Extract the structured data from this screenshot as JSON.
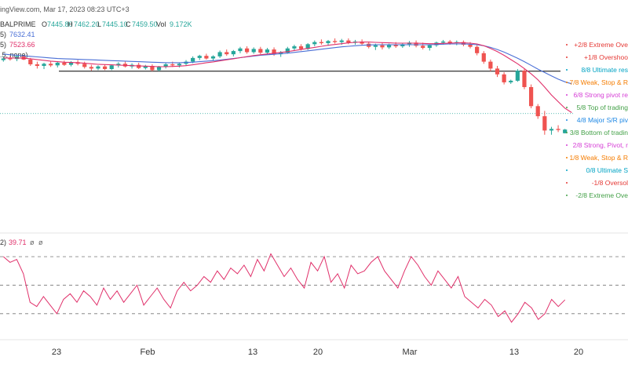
{
  "header": {
    "site_fragment": "ingView.com, Mar 17, 2023 08:23 UTC+3",
    "symbol_fragment": "BALPRIME",
    "o_label": "O",
    "o_value": "7445.80",
    "h_label": "H",
    "h_value": "7462.20",
    "l_label": "L",
    "l_value": "7445.10",
    "c_label": "C",
    "c_value": "7459.50",
    "vol_label": "Vol",
    "vol_value": "9.172K",
    "ma1_fragment": "5)",
    "ma1_value": "7632.41",
    "ma2_fragment": "5)",
    "ma2_value": "7523.66",
    "params_fragment": ".5, none)"
  },
  "rsi_header": {
    "fragment": "2)",
    "value": "39.71",
    "extra1": "ø",
    "extra2": "ø"
  },
  "colors": {
    "candle_up": "#26a69a",
    "candle_down": "#ef5350",
    "ma_blue": "#4a6fd6",
    "ma_pink": "#e0306a",
    "rsi_line": "#e0306a",
    "support_line": "#000000",
    "price_guide": "#26a69a"
  },
  "murrey_labels": [
    {
      "text": "+2/8 Extreme Ove",
      "color": "#e53935"
    },
    {
      "text": "+1/8 Overshoo",
      "color": "#e53935"
    },
    {
      "text": "8/8 Ultimate res",
      "color": "#00a3c4"
    },
    {
      "text": "7/8 Weak, Stop & R",
      "color": "#f57c00"
    },
    {
      "text": "6/8 Strong pivot re",
      "color": "#d63fd6"
    },
    {
      "text": "5/8 Top of trading",
      "color": "#43a047"
    },
    {
      "text": "4/8 Major S/R piv",
      "color": "#1e88e5"
    },
    {
      "text": "3/8 Bottom of tradin",
      "color": "#43a047"
    },
    {
      "text": "2/8 Strong, Pivot, r",
      "color": "#d63fd6"
    },
    {
      "text": "1/8 Weak, Stop & R",
      "color": "#f57c00"
    },
    {
      "text": "0/8 Ultimate S",
      "color": "#00a3c4"
    },
    {
      "text": "-1/8 Oversol",
      "color": "#e53935"
    },
    {
      "text": "-2/8 Extreme Ove",
      "color": "#43a047"
    }
  ],
  "chart_data": [
    {
      "type": "candlestick",
      "title": "BALPRIME",
      "x_ticks": [
        "23",
        "Feb",
        "13",
        "20",
        "Mar",
        "13",
        "20"
      ],
      "grid": false,
      "y_range": [
        7380,
        7860
      ],
      "ohlc": [
        [
          7722,
          7735,
          7716,
          7728
        ],
        [
          7728,
          7738,
          7720,
          7726
        ],
        [
          7726,
          7742,
          7718,
          7736
        ],
        [
          7736,
          7740,
          7722,
          7724
        ],
        [
          7724,
          7730,
          7700,
          7706
        ],
        [
          7706,
          7716,
          7690,
          7700
        ],
        [
          7700,
          7712,
          7688,
          7708
        ],
        [
          7708,
          7718,
          7696,
          7702
        ],
        [
          7702,
          7716,
          7694,
          7712
        ],
        [
          7712,
          7720,
          7700,
          7704
        ],
        [
          7704,
          7718,
          7698,
          7714
        ],
        [
          7714,
          7722,
          7702,
          7708
        ],
        [
          7708,
          7716,
          7690,
          7696
        ],
        [
          7696,
          7704,
          7682,
          7690
        ],
        [
          7690,
          7702,
          7684,
          7698
        ],
        [
          7698,
          7706,
          7684,
          7688
        ],
        [
          7688,
          7706,
          7684,
          7702
        ],
        [
          7702,
          7714,
          7694,
          7708
        ],
        [
          7708,
          7716,
          7694,
          7698
        ],
        [
          7698,
          7710,
          7690,
          7704
        ],
        [
          7704,
          7712,
          7688,
          7692
        ],
        [
          7692,
          7704,
          7686,
          7700
        ],
        [
          7700,
          7706,
          7680,
          7684
        ],
        [
          7684,
          7700,
          7680,
          7696
        ],
        [
          7696,
          7712,
          7690,
          7706
        ],
        [
          7706,
          7716,
          7696,
          7702
        ],
        [
          7702,
          7712,
          7694,
          7708
        ],
        [
          7708,
          7722,
          7700,
          7716
        ],
        [
          7716,
          7736,
          7710,
          7730
        ],
        [
          7730,
          7742,
          7722,
          7738
        ],
        [
          7738,
          7746,
          7724,
          7728
        ],
        [
          7728,
          7740,
          7720,
          7736
        ],
        [
          7736,
          7758,
          7730,
          7752
        ],
        [
          7752,
          7762,
          7738,
          7744
        ],
        [
          7744,
          7760,
          7736,
          7756
        ],
        [
          7756,
          7772,
          7748,
          7766
        ],
        [
          7766,
          7774,
          7746,
          7752
        ],
        [
          7752,
          7770,
          7746,
          7764
        ],
        [
          7764,
          7772,
          7744,
          7750
        ],
        [
          7750,
          7768,
          7742,
          7762
        ],
        [
          7762,
          7770,
          7738,
          7744
        ],
        [
          7744,
          7756,
          7734,
          7750
        ],
        [
          7750,
          7772,
          7746,
          7766
        ],
        [
          7766,
          7780,
          7756,
          7774
        ],
        [
          7774,
          7782,
          7758,
          7764
        ],
        [
          7764,
          7786,
          7760,
          7782
        ],
        [
          7782,
          7796,
          7774,
          7790
        ],
        [
          7790,
          7800,
          7780,
          7786
        ],
        [
          7786,
          7798,
          7776,
          7794
        ],
        [
          7794,
          7804,
          7784,
          7790
        ],
        [
          7790,
          7802,
          7780,
          7796
        ],
        [
          7796,
          7804,
          7782,
          7788
        ],
        [
          7788,
          7798,
          7780,
          7792
        ],
        [
          7792,
          7800,
          7778,
          7784
        ],
        [
          7784,
          7792,
          7766,
          7772
        ],
        [
          7772,
          7784,
          7760,
          7778
        ],
        [
          7778,
          7788,
          7762,
          7770
        ],
        [
          7770,
          7784,
          7764,
          7780
        ],
        [
          7780,
          7790,
          7768,
          7774
        ],
        [
          7774,
          7786,
          7768,
          7782
        ],
        [
          7782,
          7794,
          7772,
          7788
        ],
        [
          7788,
          7796,
          7770,
          7776
        ],
        [
          7776,
          7788,
          7762,
          7768
        ],
        [
          7768,
          7782,
          7758,
          7778
        ],
        [
          7778,
          7792,
          7772,
          7788
        ],
        [
          7788,
          7798,
          7780,
          7792
        ],
        [
          7792,
          7798,
          7780,
          7786
        ],
        [
          7786,
          7796,
          7778,
          7790
        ],
        [
          7790,
          7796,
          7774,
          7780
        ],
        [
          7780,
          7790,
          7766,
          7772
        ],
        [
          7772,
          7778,
          7740,
          7748
        ],
        [
          7748,
          7756,
          7708,
          7716
        ],
        [
          7716,
          7724,
          7680,
          7690
        ],
        [
          7690,
          7700,
          7658,
          7668
        ],
        [
          7668,
          7676,
          7630,
          7638
        ],
        [
          7638,
          7648,
          7632,
          7644
        ],
        [
          7644,
          7688,
          7640,
          7682
        ],
        [
          7682,
          7690,
          7612,
          7620
        ],
        [
          7620,
          7630,
          7540,
          7548
        ],
        [
          7548,
          7556,
          7500,
          7510
        ],
        [
          7510,
          7530,
          7440,
          7456
        ],
        [
          7456,
          7470,
          7440,
          7462
        ],
        [
          7462,
          7476,
          7450,
          7458
        ],
        [
          7445.8,
          7462.2,
          7445.1,
          7459.5
        ]
      ],
      "series": [
        {
          "name": "7632.41",
          "values": [
            7745,
            7742,
            7740,
            7738,
            7736,
            7734,
            7732,
            7730,
            7728,
            7727,
            7726,
            7725,
            7724,
            7723,
            7722,
            7721,
            7720,
            7719,
            7718,
            7717,
            7716,
            7715,
            7714,
            7713,
            7712,
            7712,
            7712,
            7713,
            7714,
            7716,
            7718,
            7720,
            7722,
            7725,
            7728,
            7731,
            7734,
            7737,
            7740,
            7742,
            7744,
            7746,
            7748,
            7751,
            7754,
            7757,
            7760,
            7763,
            7766,
            7769,
            7772,
            7774,
            7776,
            7778,
            7779,
            7780,
            7780,
            7780,
            7780,
            7780,
            7780,
            7780,
            7780,
            7780,
            7781,
            7782,
            7783,
            7783,
            7783,
            7782,
            7780,
            7776,
            7770,
            7762,
            7752,
            7741,
            7729,
            7716,
            7702,
            7688,
            7675,
            7662,
            7650,
            7640,
            7632.41
          ]
        },
        {
          "name": "7523.66",
          "values": [
            7730,
            7730,
            7730,
            7729,
            7727,
            7724,
            7721,
            7718,
            7716,
            7714,
            7713,
            7712,
            7710,
            7708,
            7706,
            7705,
            7704,
            7703,
            7702,
            7701,
            7700,
            7699,
            7698,
            7697,
            7697,
            7698,
            7699,
            7701,
            7704,
            7708,
            7712,
            7715,
            7719,
            7723,
            7727,
            7731,
            7735,
            7739,
            7742,
            7745,
            7748,
            7751,
            7754,
            7758,
            7762,
            7766,
            7770,
            7774,
            7778,
            7781,
            7784,
            7787,
            7789,
            7790,
            7790,
            7789,
            7788,
            7787,
            7786,
            7786,
            7786,
            7786,
            7785,
            7784,
            7784,
            7785,
            7786,
            7787,
            7787,
            7786,
            7783,
            7776,
            7766,
            7754,
            7740,
            7724,
            7708,
            7690,
            7670,
            7648,
            7620,
            7590,
            7565,
            7540,
            7523.66
          ]
        }
      ],
      "horizontal_line": 7680,
      "price_guide": 7520
    },
    {
      "type": "line",
      "title": "RSI",
      "y_range": [
        20,
        75
      ],
      "reference_lines": [
        70,
        50,
        30
      ],
      "series": [
        {
          "name": "39.71",
          "values": [
            70,
            66,
            68,
            58,
            38,
            35,
            42,
            36,
            30,
            40,
            44,
            38,
            46,
            42,
            36,
            48,
            40,
            46,
            38,
            44,
            50,
            36,
            42,
            48,
            40,
            34,
            46,
            52,
            46,
            50,
            56,
            52,
            60,
            54,
            62,
            58,
            64,
            56,
            68,
            60,
            72,
            64,
            56,
            62,
            54,
            48,
            66,
            60,
            70,
            52,
            58,
            48,
            64,
            58,
            60,
            66,
            70,
            60,
            54,
            48,
            60,
            70,
            64,
            56,
            50,
            60,
            54,
            48,
            56,
            42,
            38,
            34,
            40,
            36,
            28,
            32,
            24,
            30,
            38,
            34,
            26,
            30,
            40,
            35,
            39.71
          ]
        }
      ]
    }
  ]
}
